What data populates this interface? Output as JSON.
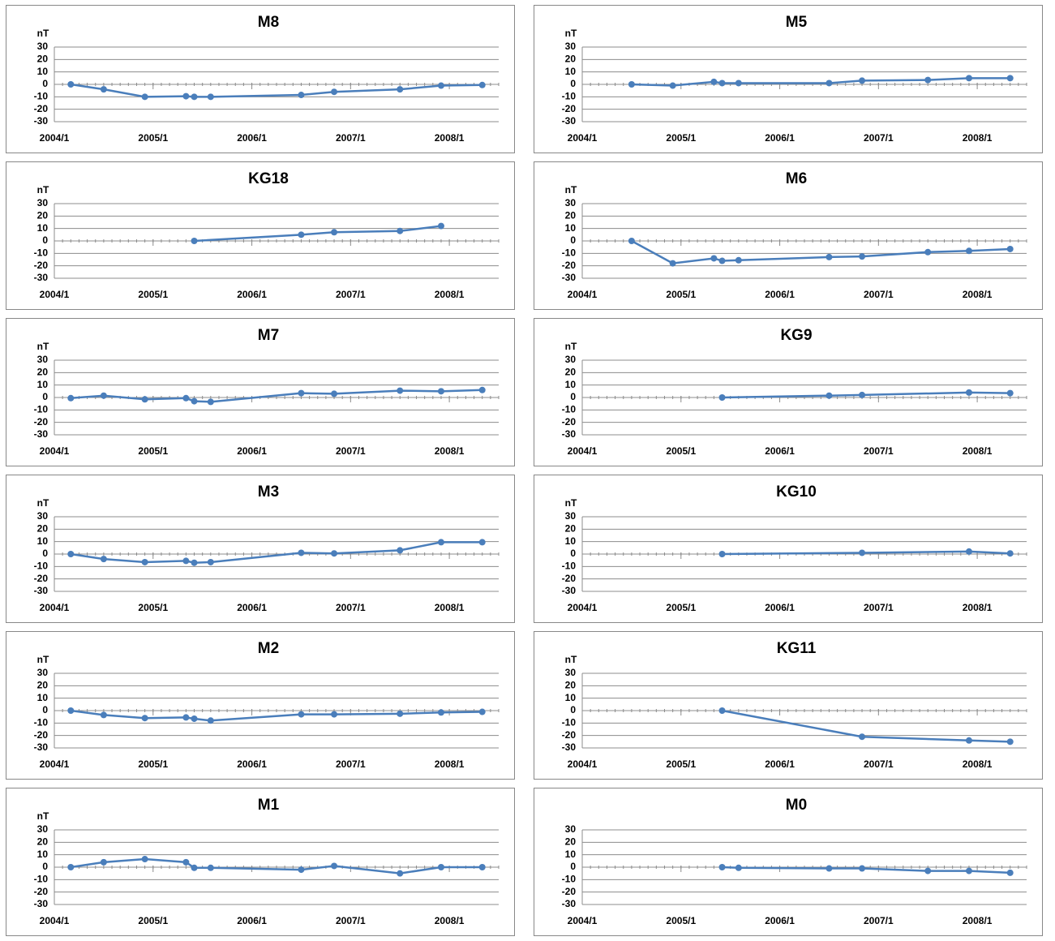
{
  "chart_data": [
    {
      "type": "line",
      "title": "M8",
      "ylabel": "nT",
      "color": "#4a7ebb",
      "grid": true,
      "x": [
        "2004/3",
        "2004/7",
        "2004/12",
        "2005/5",
        "2005/6",
        "2005/8",
        "2006/7",
        "2006/11",
        "2007/7",
        "2007/12",
        "2008/5"
      ],
      "values": [
        0,
        -4,
        -10,
        -9.5,
        -10,
        -10,
        -8.5,
        -6,
        -4,
        -1,
        -0.5
      ],
      "xlim": [
        "2004/1",
        "2008/7"
      ],
      "xticks": [
        "2004/1",
        "2005/1",
        "2006/1",
        "2007/1",
        "2008/1"
      ],
      "ylim": [
        -30,
        30
      ],
      "yticks": [
        -30,
        -20,
        -10,
        0,
        10,
        20,
        30
      ]
    },
    {
      "type": "line",
      "title": "M5",
      "ylabel": "nT",
      "color": "#4a7ebb",
      "grid": true,
      "x": [
        "2004/7",
        "2004/12",
        "2005/5",
        "2005/6",
        "2005/8",
        "2006/7",
        "2006/11",
        "2007/7",
        "2007/12",
        "2008/5"
      ],
      "values": [
        0,
        -1,
        2,
        1,
        1,
        1,
        3,
        3.5,
        5,
        5
      ],
      "xlim": [
        "2004/1",
        "2008/7"
      ],
      "xticks": [
        "2004/1",
        "2005/1",
        "2006/1",
        "2007/1",
        "2008/1"
      ],
      "ylim": [
        -30,
        30
      ],
      "yticks": [
        -30,
        -20,
        -10,
        0,
        10,
        20,
        30
      ]
    },
    {
      "type": "line",
      "title": "KG18",
      "ylabel": "nT",
      "color": "#4a7ebb",
      "grid": true,
      "x": [
        "2005/6",
        "2006/7",
        "2006/11",
        "2007/7",
        "2007/12"
      ],
      "values": [
        0,
        5,
        7,
        8,
        12
      ],
      "xlim": [
        "2004/1",
        "2008/7"
      ],
      "xticks": [
        "2004/1",
        "2005/1",
        "2006/1",
        "2007/1",
        "2008/1"
      ],
      "ylim": [
        -30,
        30
      ],
      "yticks": [
        -30,
        -20,
        -10,
        0,
        10,
        20,
        30
      ]
    },
    {
      "type": "line",
      "title": "M6",
      "ylabel": "nT",
      "color": "#4a7ebb",
      "grid": true,
      "x": [
        "2004/7",
        "2004/12",
        "2005/5",
        "2005/6",
        "2005/8",
        "2006/7",
        "2006/11",
        "2007/7",
        "2007/12",
        "2008/5"
      ],
      "values": [
        0,
        -18,
        -14,
        -16,
        -15.5,
        -13,
        -12.5,
        -9,
        -8,
        -6.5
      ],
      "xlim": [
        "2004/1",
        "2008/7"
      ],
      "xticks": [
        "2004/1",
        "2005/1",
        "2006/1",
        "2007/1",
        "2008/1"
      ],
      "ylim": [
        -30,
        30
      ],
      "yticks": [
        -30,
        -20,
        -10,
        0,
        10,
        20,
        30
      ]
    },
    {
      "type": "line",
      "title": "M7",
      "ylabel": "nT",
      "color": "#4a7ebb",
      "grid": true,
      "x": [
        "2004/3",
        "2004/7",
        "2004/12",
        "2005/5",
        "2005/6",
        "2005/8",
        "2006/7",
        "2006/11",
        "2007/7",
        "2007/12",
        "2008/5"
      ],
      "values": [
        -0.5,
        1.5,
        -1.5,
        -0.5,
        -3,
        -3.5,
        3.5,
        3,
        5.5,
        5,
        6
      ],
      "xlim": [
        "2004/1",
        "2008/7"
      ],
      "xticks": [
        "2004/1",
        "2005/1",
        "2006/1",
        "2007/1",
        "2008/1"
      ],
      "ylim": [
        -30,
        30
      ],
      "yticks": [
        -30,
        -20,
        -10,
        0,
        10,
        20,
        30
      ]
    },
    {
      "type": "line",
      "title": "KG9",
      "ylabel": "nT",
      "color": "#4a7ebb",
      "grid": true,
      "x": [
        "2005/6",
        "2006/7",
        "2006/11",
        "2007/12",
        "2008/5"
      ],
      "values": [
        0,
        1.5,
        2,
        4,
        3.5
      ],
      "xlim": [
        "2004/1",
        "2008/7"
      ],
      "xticks": [
        "2004/1",
        "2005/1",
        "2006/1",
        "2007/1",
        "2008/1"
      ],
      "ylim": [
        -30,
        30
      ],
      "yticks": [
        -30,
        -20,
        -10,
        0,
        10,
        20,
        30
      ]
    },
    {
      "type": "line",
      "title": "M3",
      "ylabel": "nT",
      "color": "#4a7ebb",
      "grid": true,
      "x": [
        "2004/3",
        "2004/7",
        "2004/12",
        "2005/5",
        "2005/6",
        "2005/8",
        "2006/7",
        "2006/11",
        "2007/7",
        "2007/12",
        "2008/5"
      ],
      "values": [
        0,
        -4,
        -6.5,
        -5.5,
        -7,
        -6.5,
        1,
        0.5,
        3,
        9.5,
        9.5
      ],
      "xlim": [
        "2004/1",
        "2008/7"
      ],
      "xticks": [
        "2004/1",
        "2005/1",
        "2006/1",
        "2007/1",
        "2008/1"
      ],
      "ylim": [
        -30,
        30
      ],
      "yticks": [
        -30,
        -20,
        -10,
        0,
        10,
        20,
        30
      ]
    },
    {
      "type": "line",
      "title": "KG10",
      "ylabel": "nT",
      "color": "#4a7ebb",
      "grid": true,
      "x": [
        "2005/6",
        "2006/11",
        "2007/12",
        "2008/5"
      ],
      "values": [
        0,
        1,
        2,
        0.5
      ],
      "xlim": [
        "2004/1",
        "2008/7"
      ],
      "xticks": [
        "2004/1",
        "2005/1",
        "2006/1",
        "2007/1",
        "2008/1"
      ],
      "ylim": [
        -30,
        30
      ],
      "yticks": [
        -30,
        -20,
        -10,
        0,
        10,
        20,
        30
      ]
    },
    {
      "type": "line",
      "title": "M2",
      "ylabel": "nT",
      "color": "#4a7ebb",
      "grid": true,
      "x": [
        "2004/3",
        "2004/7",
        "2004/12",
        "2005/5",
        "2005/6",
        "2005/8",
        "2006/7",
        "2006/11",
        "2007/7",
        "2007/12",
        "2008/5"
      ],
      "values": [
        0,
        -3.5,
        -6,
        -5.5,
        -6.5,
        -8,
        -3,
        -3,
        -2.5,
        -1.5,
        -1
      ],
      "xlim": [
        "2004/1",
        "2008/7"
      ],
      "xticks": [
        "2004/1",
        "2005/1",
        "2006/1",
        "2007/1",
        "2008/1"
      ],
      "ylim": [
        -30,
        30
      ],
      "yticks": [
        -30,
        -20,
        -10,
        0,
        10,
        20,
        30
      ]
    },
    {
      "type": "line",
      "title": "KG11",
      "ylabel": "nT",
      "color": "#4a7ebb",
      "grid": true,
      "x": [
        "2005/6",
        "2006/11",
        "2007/12",
        "2008/5"
      ],
      "values": [
        0,
        -21,
        -24,
        -25
      ],
      "xlim": [
        "2004/1",
        "2008/7"
      ],
      "xticks": [
        "2004/1",
        "2005/1",
        "2006/1",
        "2007/1",
        "2008/1"
      ],
      "ylim": [
        -30,
        30
      ],
      "yticks": [
        -30,
        -20,
        -10,
        0,
        10,
        20,
        30
      ]
    },
    {
      "type": "line",
      "title": "M1",
      "ylabel": "nT",
      "color": "#4a7ebb",
      "grid": true,
      "x": [
        "2004/3",
        "2004/7",
        "2004/12",
        "2005/5",
        "2005/6",
        "2005/8",
        "2006/7",
        "2006/11",
        "2007/7",
        "2007/12",
        "2008/5"
      ],
      "values": [
        0,
        4,
        6.5,
        4,
        -0.5,
        -0.5,
        -2,
        1,
        -5,
        0,
        0
      ],
      "xlim": [
        "2004/1",
        "2008/7"
      ],
      "xticks": [
        "2004/1",
        "2005/1",
        "2006/1",
        "2007/1",
        "2008/1"
      ],
      "ylim": [
        -30,
        30
      ],
      "yticks": [
        -30,
        -20,
        -10,
        0,
        10,
        20,
        30
      ]
    },
    {
      "type": "line",
      "title": "M0",
      "color": "#4a7ebb",
      "grid": true,
      "x": [
        "2005/6",
        "2005/8",
        "2006/7",
        "2006/11",
        "2007/7",
        "2007/12",
        "2008/5"
      ],
      "values": [
        0,
        -0.5,
        -1,
        -1,
        -3,
        -3,
        -4.5
      ],
      "xlim": [
        "2004/1",
        "2008/7"
      ],
      "xticks": [
        "2004/1",
        "2005/1",
        "2006/1",
        "2007/1",
        "2008/1"
      ],
      "ylim": [
        -30,
        30
      ],
      "yticks": [
        -30,
        -20,
        -10,
        0,
        10,
        20,
        30
      ]
    }
  ]
}
